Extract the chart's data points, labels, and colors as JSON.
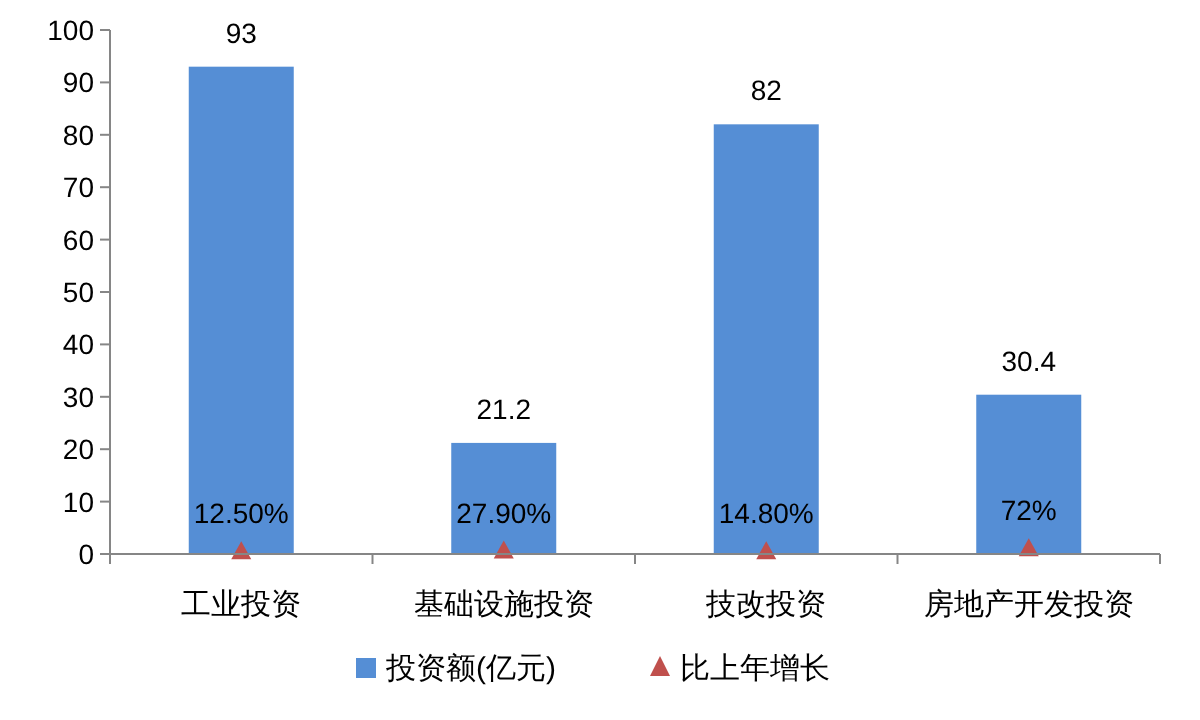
{
  "chart_data": {
    "type": "bar",
    "categories": [
      "工业投资",
      "基础设施投资",
      "技改投资",
      "房地产开发投资"
    ],
    "ylim": [
      0,
      100
    ],
    "yticks": [
      0,
      10,
      20,
      30,
      40,
      50,
      60,
      70,
      80,
      90,
      100
    ],
    "grid": false,
    "legend": "bottom",
    "series": [
      {
        "name": "投资额(亿元)",
        "color": "#558ed5",
        "values": [
          93,
          21.2,
          82,
          30.4
        ],
        "value_labels": [
          "93",
          "21.2",
          "82",
          "30.4"
        ]
      },
      {
        "name": "比上年增长",
        "type": "scatter",
        "marker": "triangle",
        "color": "#c0504d",
        "values": [
          0.125,
          0.279,
          0.148,
          0.72
        ],
        "value_labels": [
          "12.50%",
          "27.90%",
          "14.80%",
          "72%"
        ]
      }
    ]
  }
}
